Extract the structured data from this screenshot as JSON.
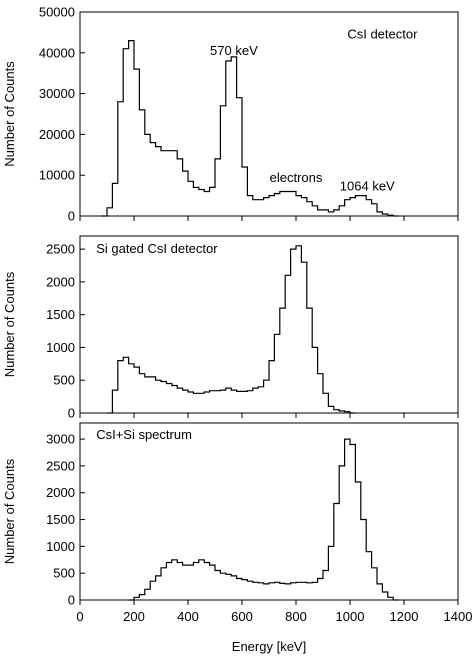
{
  "chart_data": [
    {
      "type": "histogram",
      "xlabel": "",
      "ylabel": "Number of Counts",
      "xlim": [
        0,
        1400
      ],
      "ylim": [
        0,
        50000
      ],
      "xticks": [
        0,
        200,
        400,
        600,
        800,
        1000,
        1200,
        1400
      ],
      "xtick_labels_visible": false,
      "yticks": [
        0,
        10000,
        20000,
        30000,
        40000,
        50000
      ],
      "bin_width": 20,
      "annotations": [
        {
          "text": "CsI detector",
          "x": 1120,
          "y": 43500
        },
        {
          "text": "570 keV",
          "x": 570,
          "y": 39500
        },
        {
          "text": "electrons",
          "x": 800,
          "y": 8300
        },
        {
          "text": "1064 keV",
          "x": 1064,
          "y": 6200
        }
      ],
      "series": [
        {
          "x": [
            80,
            100,
            120,
            140,
            160,
            180,
            200,
            220,
            240,
            260,
            280,
            300,
            320,
            340,
            360,
            380,
            400,
            420,
            440,
            460,
            480,
            500,
            520,
            540,
            560,
            580,
            600,
            620,
            640,
            660,
            680,
            700,
            720,
            740,
            760,
            780,
            800,
            820,
            840,
            860,
            880,
            900,
            920,
            940,
            960,
            980,
            1000,
            1020,
            1040,
            1060,
            1080,
            1100,
            1120,
            1140,
            1160
          ],
          "values": [
            0,
            2000,
            8000,
            28000,
            41000,
            43000,
            36000,
            26000,
            20000,
            18000,
            17000,
            16000,
            16000,
            16000,
            14000,
            11000,
            8500,
            7000,
            6500,
            6000,
            7000,
            14000,
            27000,
            38000,
            39000,
            29000,
            12000,
            5000,
            4000,
            4000,
            4500,
            5000,
            5500,
            6000,
            6000,
            6000,
            5000,
            4500,
            3500,
            2500,
            1500,
            1500,
            1000,
            1500,
            2500,
            4000,
            4500,
            5000,
            5000,
            4000,
            3000,
            1000,
            500,
            200,
            0
          ]
        }
      ]
    },
    {
      "type": "histogram",
      "xlabel": "",
      "ylabel": "Number of Counts",
      "xlim": [
        0,
        1400
      ],
      "ylim": [
        0,
        2700
      ],
      "xticks": [
        0,
        200,
        400,
        600,
        800,
        1000,
        1200,
        1400
      ],
      "xtick_labels_visible": false,
      "yticks": [
        0,
        500,
        1000,
        1500,
        2000,
        2500
      ],
      "bin_width": 20,
      "annotations": [
        {
          "text": "Si gated CsI detector",
          "x": 60,
          "y": 2440
        }
      ],
      "series": [
        {
          "x": [
            100,
            120,
            140,
            160,
            180,
            200,
            220,
            240,
            260,
            280,
            300,
            320,
            340,
            360,
            380,
            400,
            420,
            440,
            460,
            480,
            500,
            520,
            540,
            560,
            580,
            600,
            620,
            640,
            660,
            680,
            700,
            720,
            740,
            760,
            780,
            800,
            820,
            840,
            860,
            880,
            900,
            920,
            940,
            960,
            980,
            1000
          ],
          "values": [
            0,
            350,
            800,
            850,
            750,
            700,
            600,
            550,
            550,
            500,
            480,
            450,
            420,
            380,
            350,
            320,
            300,
            300,
            320,
            340,
            340,
            350,
            380,
            350,
            330,
            330,
            340,
            380,
            400,
            500,
            800,
            1200,
            1600,
            2100,
            2500,
            2550,
            2300,
            1600,
            1000,
            600,
            300,
            100,
            50,
            30,
            20,
            0
          ]
        }
      ]
    },
    {
      "type": "histogram",
      "xlabel": "Energy [keV]",
      "ylabel": "Number of Counts",
      "xlim": [
        0,
        1400
      ],
      "ylim": [
        0,
        3300
      ],
      "xticks": [
        0,
        200,
        400,
        600,
        800,
        1000,
        1200,
        1400
      ],
      "xtick_labels_visible": true,
      "yticks": [
        0,
        500,
        1000,
        1500,
        2000,
        2500,
        3000
      ],
      "bin_width": 20,
      "annotations": [
        {
          "text": "CsI+Si spectrum",
          "x": 60,
          "y": 3000
        }
      ],
      "series": [
        {
          "x": [
            180,
            200,
            220,
            240,
            260,
            280,
            300,
            320,
            340,
            360,
            380,
            400,
            420,
            440,
            460,
            480,
            500,
            520,
            540,
            560,
            580,
            600,
            620,
            640,
            660,
            680,
            700,
            720,
            740,
            760,
            780,
            800,
            820,
            840,
            860,
            880,
            900,
            920,
            940,
            960,
            980,
            1000,
            1020,
            1040,
            1060,
            1080,
            1100,
            1120,
            1140,
            1160
          ],
          "values": [
            0,
            50,
            100,
            200,
            350,
            450,
            600,
            700,
            750,
            700,
            650,
            650,
            700,
            750,
            700,
            650,
            550,
            500,
            480,
            450,
            400,
            380,
            350,
            330,
            320,
            300,
            320,
            330,
            310,
            300,
            320,
            330,
            330,
            320,
            330,
            400,
            550,
            1000,
            1800,
            2500,
            3000,
            2900,
            2200,
            1500,
            900,
            600,
            300,
            150,
            50,
            0
          ]
        }
      ]
    }
  ]
}
